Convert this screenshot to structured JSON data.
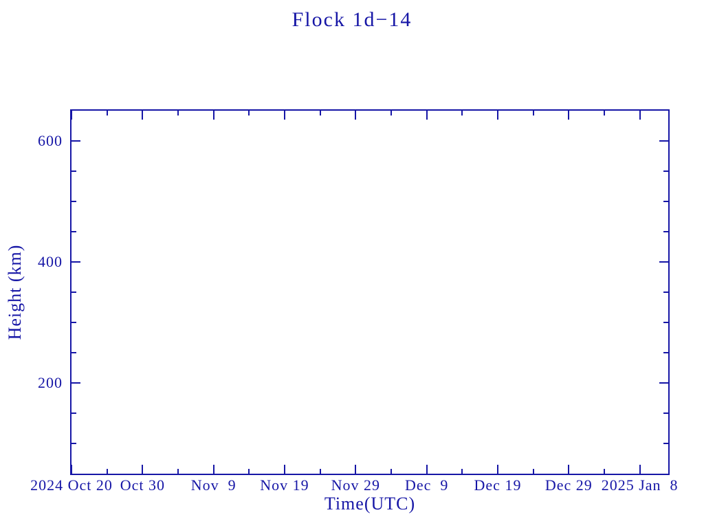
{
  "colors": {
    "ink": "#1616a6",
    "background": "#ffffff"
  },
  "chart_data": {
    "type": "line",
    "title": "Flock 1d−14",
    "xlabel": "Time(UTC)",
    "ylabel": "Height (km)",
    "grid": false,
    "legend": null,
    "series": [],
    "x_axis": {
      "unit": "days since 2024 Oct 20",
      "range_days": [
        0,
        84
      ],
      "major_ticks": [
        {
          "day": 0,
          "label": "2024 Oct 20"
        },
        {
          "day": 10,
          "label": "Oct 30"
        },
        {
          "day": 20,
          "label": "Nov  9"
        },
        {
          "day": 30,
          "label": "Nov 19"
        },
        {
          "day": 40,
          "label": "Nov 29"
        },
        {
          "day": 50,
          "label": "Dec  9"
        },
        {
          "day": 60,
          "label": "Dec 19"
        },
        {
          "day": 70,
          "label": "Dec 29"
        },
        {
          "day": 80,
          "label": "2025 Jan  8"
        }
      ],
      "minor_tick_days": [
        5,
        15,
        25,
        35,
        45,
        55,
        65,
        75
      ]
    },
    "y_axis": {
      "range": [
        50,
        650
      ],
      "major_ticks": [
        {
          "value": 600,
          "label": "600"
        },
        {
          "value": 400,
          "label": "400"
        },
        {
          "value": 200,
          "label": "200"
        }
      ],
      "minor_tick_values": [
        550,
        500,
        450,
        350,
        300,
        250,
        150,
        100
      ]
    }
  }
}
